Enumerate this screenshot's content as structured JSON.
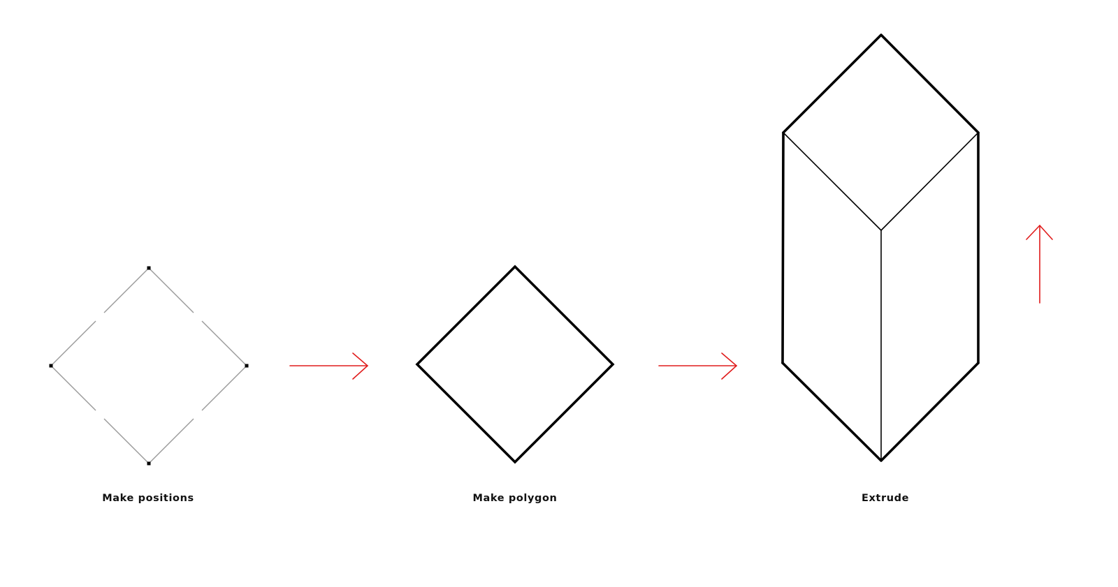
{
  "steps": [
    {
      "caption": "Make positions"
    },
    {
      "caption": "Make polygon"
    },
    {
      "caption": "Extrude"
    }
  ],
  "colors": {
    "outline": "#000000",
    "construction_line": "#9a9a9a",
    "point": "#000000",
    "arrow": "#e01b1b",
    "background": "#ffffff"
  },
  "icons": {
    "step_arrow": "right-arrow-icon",
    "extrude_direction": "up-arrow-icon"
  }
}
